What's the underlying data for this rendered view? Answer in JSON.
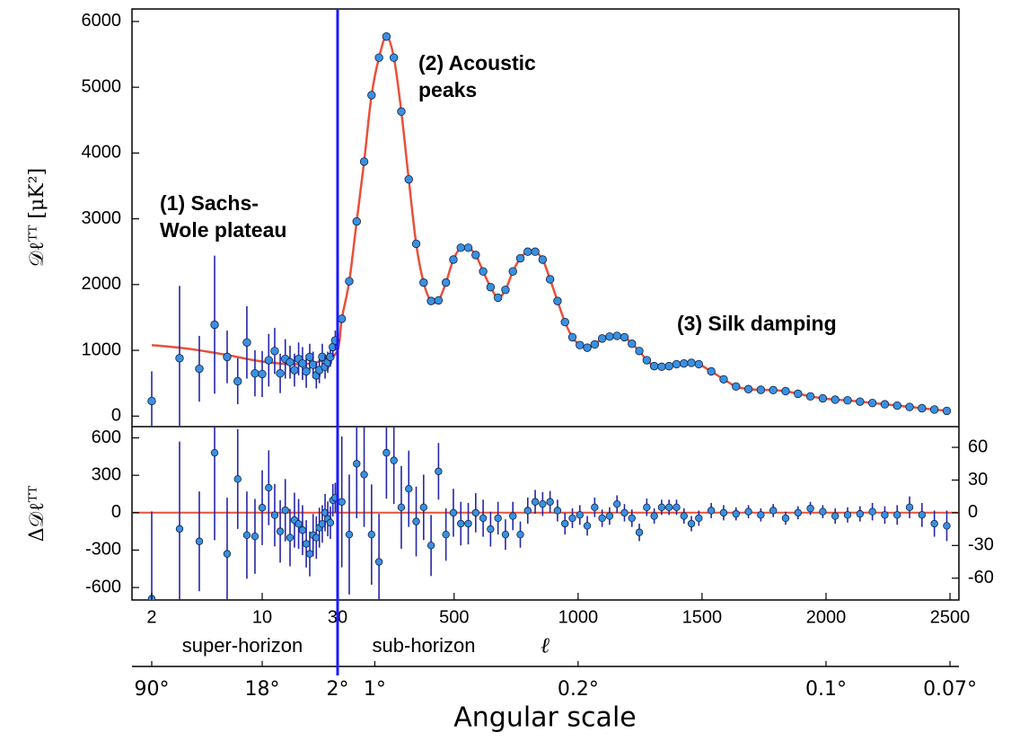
{
  "chart_data": {
    "type": "scatter",
    "xscale": "log-linear",
    "xsplit": 30,
    "xlim": [
      1.5,
      2536
    ],
    "xticks": [
      2,
      10,
      30,
      500,
      1000,
      1500,
      2000,
      2500
    ],
    "xlabel": "ℓ",
    "ylabel": "𝒟ℓᵀᵀ [μK²]",
    "ylim": [
      -160,
      6190
    ],
    "yticks": [
      0,
      1000,
      2000,
      3000,
      4000,
      5000,
      6000
    ],
    "residual": {
      "ylabel": "Δ𝒟ℓᵀᵀ",
      "ylim": [
        -700,
        690
      ],
      "yticks": [
        -600,
        -300,
        0,
        300,
        600
      ],
      "y2lim": [
        -80,
        79
      ],
      "y2ticks": [
        -60,
        -30,
        0,
        30,
        60
      ]
    },
    "angular": {
      "label": "Angular scale",
      "ticks": [
        {
          "value": 2,
          "label": "90°"
        },
        {
          "value": 10,
          "label": "18°"
        },
        {
          "value": 30,
          "label": "2°"
        },
        {
          "value": 180,
          "label": "1°"
        },
        {
          "value": 1000,
          "label": "0.2°"
        },
        {
          "value": 2000,
          "label": "0.1°"
        },
        {
          "value": 2500,
          "label": "0.07°"
        }
      ]
    },
    "point_color": "#3a90e0",
    "error_color": "#2626a8",
    "series": [
      {
        "x": [
          2,
          3,
          4,
          5,
          6,
          7,
          8,
          9,
          10,
          11,
          12,
          13,
          14,
          15,
          16,
          17,
          18,
          19,
          20,
          21,
          22,
          23,
          24,
          25,
          26,
          27,
          28,
          29
        ],
        "values": [
          230,
          880,
          720,
          1390,
          900,
          530,
          1120,
          650,
          640,
          850,
          990,
          650,
          870,
          820,
          700,
          870,
          800,
          680,
          900,
          780,
          620,
          700,
          900,
          750,
          820,
          900,
          1050,
          1150
        ],
        "errors": [
          450,
          1100,
          500,
          1050,
          400,
          350,
          550,
          350,
          350,
          400,
          350,
          300,
          300,
          250,
          250,
          250,
          250,
          250,
          200,
          200,
          200,
          200,
          200,
          180,
          160,
          150,
          150,
          150
        ],
        "residuals": [
          -690,
          -130,
          -230,
          480,
          -330,
          270,
          -180,
          -190,
          40,
          200,
          -20,
          -150,
          20,
          -200,
          -60,
          -90,
          -140,
          -250,
          -330,
          -180,
          -200,
          -120,
          -90,
          0,
          -50,
          -80,
          100,
          120
        ],
        "residual_errors": [
          700,
          700,
          400,
          700,
          450,
          400,
          350,
          300,
          300,
          300,
          250,
          250,
          250,
          230,
          220,
          200,
          200,
          190,
          180,
          170,
          170,
          160,
          150,
          150,
          140,
          130,
          130,
          120
        ],
        "residual_axis": "y"
      },
      {
        "x": [
          47,
          77,
          107,
          137,
          167,
          197,
          227,
          257,
          287,
          317,
          347,
          377,
          407,
          437,
          467,
          497,
          527,
          557,
          587,
          617,
          647,
          677,
          707,
          737,
          767,
          797,
          827,
          857,
          887,
          917,
          947,
          977,
          1007,
          1037,
          1067,
          1097,
          1127,
          1157,
          1187,
          1217,
          1247,
          1277,
          1307,
          1337,
          1367,
          1397,
          1427,
          1457,
          1487,
          1537,
          1587,
          1637,
          1687,
          1737,
          1787,
          1837,
          1887,
          1937,
          1987,
          2037,
          2087,
          2137,
          2187,
          2237,
          2287,
          2337,
          2387,
          2437,
          2487
        ],
        "values": [
          1480,
          2050,
          2960,
          3870,
          4880,
          5450,
          5770,
          5450,
          4630,
          3600,
          2620,
          2030,
          1750,
          1760,
          2030,
          2380,
          2560,
          2560,
          2450,
          2200,
          1960,
          1800,
          1920,
          2200,
          2400,
          2500,
          2500,
          2380,
          2080,
          1750,
          1430,
          1200,
          1080,
          1040,
          1090,
          1180,
          1210,
          1220,
          1200,
          1100,
          990,
          850,
          760,
          750,
          760,
          790,
          800,
          810,
          790,
          680,
          560,
          450,
          410,
          400,
          395,
          380,
          340,
          300,
          270,
          250,
          240,
          220,
          200,
          180,
          160,
          140,
          120,
          100,
          80
        ],
        "residuals": [
          10,
          -20,
          45,
          35,
          -20,
          -45,
          55,
          48,
          5,
          22,
          -8,
          5,
          -30,
          38,
          -20,
          0,
          -10,
          -10,
          0,
          -5,
          -15,
          -5,
          -20,
          -3,
          -20,
          2,
          10,
          8,
          10,
          2,
          -10,
          -5,
          -2,
          -12,
          5,
          -5,
          -3,
          8,
          0,
          -5,
          -18,
          5,
          -3,
          5,
          5,
          5,
          -3,
          -10,
          -5,
          2,
          0,
          -1,
          1,
          -2,
          2,
          -5,
          0,
          4,
          1,
          -3,
          -2,
          -1,
          1,
          -2,
          -2,
          5,
          -2,
          -10,
          -12
        ],
        "residual_errors": [
          60,
          55,
          50,
          48,
          46,
          44,
          42,
          40,
          38,
          35,
          32,
          30,
          28,
          26,
          24,
          22,
          20,
          19,
          18,
          17,
          16,
          15,
          14,
          13,
          12,
          12,
          11,
          11,
          10,
          10,
          10,
          9,
          9,
          9,
          9,
          8,
          8,
          8,
          8,
          8,
          8,
          8,
          7,
          7,
          7,
          7,
          7,
          7,
          7,
          7,
          7,
          6,
          6,
          6,
          6,
          6,
          6,
          6,
          6,
          7,
          7,
          7,
          8,
          8,
          9,
          10,
          11,
          12,
          14
        ],
        "residual_axis": "y2"
      }
    ],
    "model": {
      "color": "#e8503a",
      "x": [
        2,
        3,
        4,
        6,
        8,
        10,
        13,
        16,
        20,
        25,
        30,
        47,
        77,
        107,
        137,
        167,
        197,
        227,
        257,
        287,
        317,
        347,
        377,
        407,
        437,
        467,
        497,
        527,
        557,
        587,
        617,
        647,
        677,
        707,
        737,
        767,
        797,
        827,
        857,
        887,
        917,
        947,
        977,
        1007,
        1037,
        1067,
        1097,
        1127,
        1157,
        1187,
        1217,
        1247,
        1277,
        1307,
        1337,
        1367,
        1397,
        1427,
        1457,
        1487,
        1537,
        1587,
        1637,
        1687,
        1737,
        1787,
        1837,
        1887,
        1937,
        1987,
        2037,
        2087,
        2137,
        2187,
        2237,
        2287,
        2337,
        2387,
        2437,
        2487
      ],
      "values": [
        1080,
        1040,
        1000,
        930,
        870,
        830,
        800,
        790,
        800,
        860,
        1000,
        1480,
        2050,
        2960,
        3870,
        4880,
        5450,
        5770,
        5450,
        4630,
        3600,
        2620,
        2030,
        1750,
        1760,
        2030,
        2380,
        2560,
        2560,
        2450,
        2200,
        1960,
        1800,
        1920,
        2200,
        2400,
        2500,
        2500,
        2380,
        2080,
        1750,
        1430,
        1200,
        1080,
        1040,
        1090,
        1180,
        1210,
        1220,
        1200,
        1100,
        990,
        850,
        760,
        750,
        760,
        790,
        800,
        810,
        790,
        680,
        560,
        450,
        410,
        400,
        395,
        380,
        340,
        300,
        270,
        250,
        240,
        220,
        200,
        180,
        160,
        140,
        120,
        100,
        80
      ]
    },
    "vline": {
      "x": 30,
      "color": "#1a1aff"
    },
    "annotations": [
      [
        "(1) Sachs-",
        "Wole plateau"
      ],
      [
        "(2) Acoustic",
        "peaks"
      ],
      [
        "(3) Silk damping"
      ]
    ],
    "horizon_labels": [
      "super-horizon",
      "sub-horizon"
    ]
  }
}
